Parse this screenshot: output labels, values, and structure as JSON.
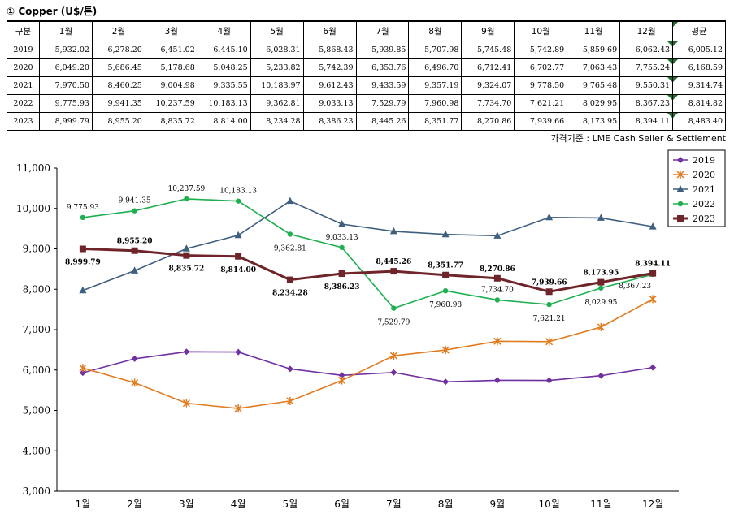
{
  "heading": "① Copper (U$/톤)",
  "table": {
    "corner": "구분",
    "months": [
      "1월",
      "2월",
      "3월",
      "4월",
      "5월",
      "6월",
      "7월",
      "8월",
      "9월",
      "10월",
      "11월",
      "12월"
    ],
    "avg_label": "평균",
    "rows": [
      {
        "year": "2019",
        "values": [
          "5,932.02",
          "6,278.20",
          "6,451.02",
          "6,445.10",
          "6,028.31",
          "5,868.43",
          "5,939.85",
          "5,707.98",
          "5,745.48",
          "5,742.89",
          "5,859.69",
          "6,062.43"
        ],
        "avg": "6,005.12"
      },
      {
        "year": "2020",
        "values": [
          "6,049.20",
          "5,686.45",
          "5,178.68",
          "5,048.25",
          "5,233.82",
          "5,742.39",
          "6,353.76",
          "6,496.70",
          "6,712.41",
          "6,702.77",
          "7,063.43",
          "7,755.24"
        ],
        "avg": "6,168.59"
      },
      {
        "year": "2021",
        "values": [
          "7,970.50",
          "8,460.25",
          "9,004.98",
          "9,335.55",
          "10,183.97",
          "9,612.43",
          "9,433.59",
          "9,357.19",
          "9,324.07",
          "9,778.50",
          "9,765.48",
          "9,550.31"
        ],
        "avg": "9,314.74"
      },
      {
        "year": "2022",
        "values": [
          "9,775.93",
          "9,941.35",
          "10,237.59",
          "10,183.13",
          "9,362.81",
          "9,033.13",
          "7,529.79",
          "7,960.98",
          "7,734.70",
          "7,621.21",
          "8,029.95",
          "8,367.23"
        ],
        "avg": "8,814.82"
      },
      {
        "year": "2023",
        "values": [
          "8,999.79",
          "8,955.20",
          "8,835.72",
          "8,814.00",
          "8,234.28",
          "8,386.23",
          "8,445.26",
          "8,351.77",
          "8,270.86",
          "7,939.66",
          "8,173.95",
          "8,394.11"
        ],
        "avg": "8,483.40"
      }
    ]
  },
  "note": "가격기준 : LME Cash Seller & Settlement",
  "chart_data": {
    "type": "line",
    "categories": [
      "1월",
      "2월",
      "3월",
      "4월",
      "5월",
      "6월",
      "7월",
      "8월",
      "9월",
      "10월",
      "11월",
      "12월"
    ],
    "ylim": [
      3000,
      11000
    ],
    "yticks": [
      "3,000",
      "4,000",
      "5,000",
      "6,000",
      "7,000",
      "8,000",
      "9,000",
      "10,000",
      "11,000"
    ],
    "legend_position": "top-right",
    "series": [
      {
        "name": "2019",
        "color": "#7030a0",
        "marker": "diamond",
        "values": [
          5932.02,
          6278.2,
          6451.02,
          6445.1,
          6028.31,
          5868.43,
          5939.85,
          5707.98,
          5745.48,
          5742.89,
          5859.69,
          6062.43
        ]
      },
      {
        "name": "2020",
        "color": "#e07b1f",
        "marker": "star",
        "values": [
          6049.2,
          5686.45,
          5178.68,
          5048.25,
          5233.82,
          5742.39,
          6353.76,
          6496.7,
          6712.41,
          6702.77,
          7063.43,
          7755.24
        ]
      },
      {
        "name": "2021",
        "color": "#3f5f7f",
        "marker": "triangle",
        "values": [
          7970.5,
          8460.25,
          9004.98,
          9335.55,
          10183.97,
          9612.43,
          9433.59,
          9357.19,
          9324.07,
          9778.5,
          9765.48,
          9550.31
        ]
      },
      {
        "name": "2022",
        "color": "#1eb050",
        "marker": "circle",
        "values": [
          9775.93,
          9941.35,
          10237.59,
          10183.13,
          9362.81,
          9033.13,
          7529.79,
          7960.98,
          7734.7,
          7621.21,
          8029.95,
          8367.23
        ],
        "labels": [
          "9,775.93",
          "9,941.35",
          "10,237.59",
          "10,183.13",
          "9,362.81",
          "9,033.13",
          "7,529.79",
          "7,960.98",
          "7,734.70",
          "7,621.21",
          "8,029.95",
          "8,367.23"
        ]
      },
      {
        "name": "2023",
        "color": "#6e2428",
        "marker": "square",
        "values": [
          8999.79,
          8955.2,
          8835.72,
          8814.0,
          8234.28,
          8386.23,
          8445.26,
          8351.77,
          8270.86,
          7939.66,
          8173.95,
          8394.11
        ],
        "labels": [
          "8,999.79",
          "8,955.20",
          "8,835.72",
          "8,814.00",
          "8,234.28",
          "8,386.23",
          "8,445.26",
          "8,351.77",
          "8,270.86",
          "7,939.66",
          "8,173.95",
          "8,394.11"
        ]
      }
    ]
  }
}
